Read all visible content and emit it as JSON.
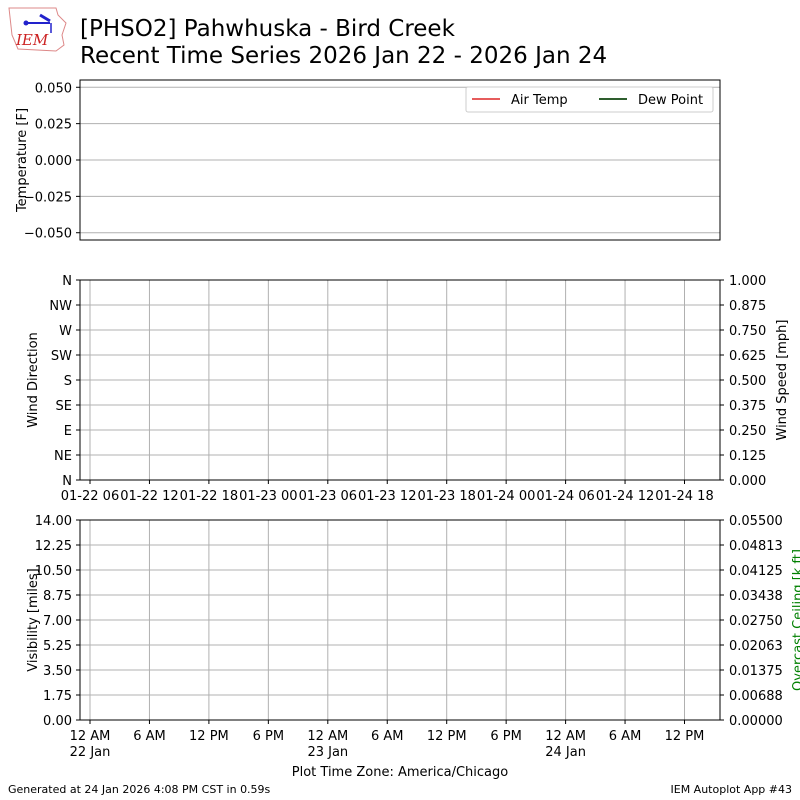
{
  "header": {
    "title_line1": "[PHSO2] Pahwhuska - Bird Creek",
    "title_line2": "Recent Time Series 2026 Jan 22 - 2026 Jan 24",
    "logo_text": "IEM"
  },
  "footer": {
    "generated": "Generated at 24 Jan 2026 4:08 PM CST in 0.59s",
    "app": "IEM Autoplot App #43"
  },
  "chart_data": [
    {
      "type": "line",
      "ylabel": "Temperature [F]",
      "ylim": [
        -0.055,
        0.055
      ],
      "yticks": [
        "0.050",
        "0.025",
        "0.000",
        "−0.025",
        "−0.050"
      ],
      "ytick_values": [
        0.05,
        0.025,
        0,
        -0.025,
        -0.05
      ],
      "grid": "horizontal",
      "legend": "top-right",
      "series": [
        {
          "name": "Air Temp",
          "color": "#e65c5c",
          "values": []
        },
        {
          "name": "Dew Point",
          "color": "#2e5e2e",
          "values": []
        }
      ]
    },
    {
      "type": "scatter",
      "ylabel": "Wind Direction",
      "ylabel_right": "Wind Speed [mph]",
      "ylim": [
        0,
        360
      ],
      "ylim_right": [
        0,
        1
      ],
      "yticks": [
        "N",
        "NE",
        "E",
        "SE",
        "S",
        "SW",
        "W",
        "NW",
        "N"
      ],
      "yticks_right": [
        "0.000",
        "0.125",
        "0.250",
        "0.375",
        "0.500",
        "0.625",
        "0.750",
        "0.875",
        "1.000"
      ],
      "xticks": [
        "01-22 06",
        "01-22 12",
        "01-22 18",
        "01-23 00",
        "01-23 06",
        "01-23 12",
        "01-23 18",
        "01-24 00",
        "01-24 06",
        "01-24 12",
        "01-24 18"
      ],
      "grid": true,
      "series": []
    },
    {
      "type": "line",
      "ylabel": "Visibility [miles]",
      "ylabel_right": "Overcast Ceiling [k ft]",
      "ylabel_right_color": "#008000",
      "ylim": [
        0,
        14
      ],
      "ylim_right": [
        0,
        0.055
      ],
      "yticks": [
        "0.00",
        "1.75",
        "3.50",
        "5.25",
        "7.00",
        "8.75",
        "10.50",
        "12.25",
        "14.00"
      ],
      "yticks_right": [
        "0.00000",
        "0.00688",
        "0.01375",
        "0.02063",
        "0.02750",
        "0.03438",
        "0.04125",
        "0.04813",
        "0.05500"
      ],
      "xticks": [
        [
          "12 AM",
          "22 Jan"
        ],
        [
          "6 AM"
        ],
        [
          "12 PM"
        ],
        [
          "6 PM"
        ],
        [
          "12 AM",
          "23 Jan"
        ],
        [
          "6 AM"
        ],
        [
          "12 PM"
        ],
        [
          "6 PM"
        ],
        [
          "12 AM",
          "24 Jan"
        ],
        [
          "6 AM"
        ],
        [
          "12 PM"
        ]
      ],
      "xlabel": "Plot Time Zone: America/Chicago",
      "grid": true,
      "series": []
    }
  ]
}
